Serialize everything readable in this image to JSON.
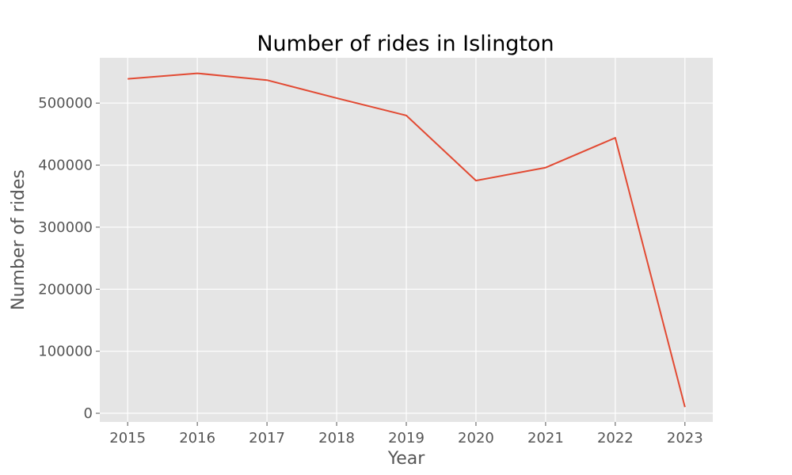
{
  "chart_data": {
    "type": "line",
    "title": "Number of rides in Islington",
    "xlabel": "Year",
    "ylabel": "Number of rides",
    "x": [
      2015,
      2016,
      2017,
      2018,
      2019,
      2020,
      2021,
      2022,
      2023
    ],
    "series": [
      {
        "values": [
          539000,
          548000,
          537000,
          508000,
          480000,
          375000,
          396000,
          444000,
          10000
        ],
        "color": "#E24A33"
      }
    ],
    "xlim": [
      2014.6,
      2023.4
    ],
    "ylim": [
      -14000,
      573000
    ],
    "yticks": [
      0,
      100000,
      200000,
      300000,
      400000,
      500000
    ],
    "xticks": [
      2015,
      2016,
      2017,
      2018,
      2019,
      2020,
      2021,
      2022,
      2023
    ],
    "grid": true,
    "legend": "none",
    "colors": {
      "background": "#E5E5E5",
      "grid": "#FFFFFF",
      "line": "#E24A33"
    }
  }
}
